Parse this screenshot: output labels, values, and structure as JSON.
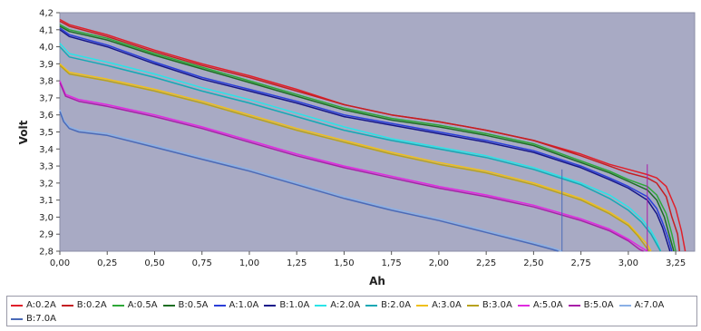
{
  "chart_data": {
    "type": "line",
    "title": "",
    "xlabel": "Ah",
    "ylabel": "Volt",
    "xlim": [
      0,
      3.35
    ],
    "ylim": [
      2.8,
      4.2
    ],
    "x_ticks": [
      "0,00",
      "0,25",
      "0,50",
      "0,75",
      "1,00",
      "1,25",
      "1,50",
      "1,75",
      "2,00",
      "2,25",
      "2,50",
      "2,75",
      "3,00",
      "3,25"
    ],
    "x_tick_values": [
      0,
      0.25,
      0.5,
      0.75,
      1.0,
      1.25,
      1.5,
      1.75,
      2.0,
      2.25,
      2.5,
      2.75,
      3.0,
      3.25
    ],
    "y_ticks": [
      "2,8",
      "2,9",
      "3,0",
      "3,1",
      "3,2",
      "3,3",
      "3,4",
      "3,5",
      "3,6",
      "3,7",
      "3,8",
      "3,9",
      "4,0",
      "4,1",
      "4,2"
    ],
    "y_tick_values": [
      2.8,
      2.9,
      3.0,
      3.1,
      3.2,
      3.3,
      3.4,
      3.5,
      3.6,
      3.7,
      3.8,
      3.9,
      4.0,
      4.1,
      4.2
    ],
    "grid": false,
    "legend_position": "bottom",
    "background_color": "#a8aac4",
    "series": [
      {
        "name": "A:0.2A",
        "color": "#e0202a",
        "points": [
          [
            0,
            4.16
          ],
          [
            0.05,
            4.13
          ],
          [
            0.25,
            4.07
          ],
          [
            0.5,
            3.98
          ],
          [
            0.75,
            3.9
          ],
          [
            1.0,
            3.83
          ],
          [
            1.25,
            3.75
          ],
          [
            1.5,
            3.66
          ],
          [
            1.75,
            3.6
          ],
          [
            2.0,
            3.56
          ],
          [
            2.25,
            3.51
          ],
          [
            2.5,
            3.45
          ],
          [
            2.75,
            3.37
          ],
          [
            2.9,
            3.31
          ],
          [
            3.0,
            3.28
          ],
          [
            3.1,
            3.25
          ],
          [
            3.15,
            3.23
          ],
          [
            3.2,
            3.18
          ],
          [
            3.25,
            3.05
          ],
          [
            3.28,
            2.92
          ],
          [
            3.3,
            2.8
          ]
        ]
      },
      {
        "name": "B:0.2A",
        "color": "#c41f22",
        "points": [
          [
            0,
            4.15
          ],
          [
            0.05,
            4.12
          ],
          [
            0.25,
            4.06
          ],
          [
            0.5,
            3.97
          ],
          [
            0.75,
            3.89
          ],
          [
            1.0,
            3.82
          ],
          [
            1.25,
            3.74
          ],
          [
            1.5,
            3.66
          ],
          [
            1.75,
            3.6
          ],
          [
            2.0,
            3.56
          ],
          [
            2.25,
            3.51
          ],
          [
            2.5,
            3.45
          ],
          [
            2.75,
            3.36
          ],
          [
            2.9,
            3.3
          ],
          [
            3.0,
            3.26
          ],
          [
            3.1,
            3.23
          ],
          [
            3.15,
            3.2
          ],
          [
            3.2,
            3.12
          ],
          [
            3.23,
            3.0
          ],
          [
            3.26,
            2.9
          ],
          [
            3.27,
            2.8
          ]
        ]
      },
      {
        "name": "A:0.5A",
        "color": "#2ea838",
        "points": [
          [
            0,
            4.13
          ],
          [
            0.05,
            4.1
          ],
          [
            0.25,
            4.05
          ],
          [
            0.5,
            3.96
          ],
          [
            0.75,
            3.88
          ],
          [
            1.0,
            3.8
          ],
          [
            1.25,
            3.72
          ],
          [
            1.5,
            3.64
          ],
          [
            1.75,
            3.58
          ],
          [
            2.0,
            3.54
          ],
          [
            2.25,
            3.49
          ],
          [
            2.5,
            3.43
          ],
          [
            2.75,
            3.33
          ],
          [
            2.9,
            3.27
          ],
          [
            3.0,
            3.22
          ],
          [
            3.1,
            3.18
          ],
          [
            3.15,
            3.13
          ],
          [
            3.2,
            3.02
          ],
          [
            3.23,
            2.9
          ],
          [
            3.25,
            2.8
          ]
        ]
      },
      {
        "name": "B:0.5A",
        "color": "#1d6e22",
        "points": [
          [
            0,
            4.12
          ],
          [
            0.05,
            4.09
          ],
          [
            0.25,
            4.04
          ],
          [
            0.5,
            3.95
          ],
          [
            0.75,
            3.87
          ],
          [
            1.0,
            3.79
          ],
          [
            1.25,
            3.71
          ],
          [
            1.5,
            3.63
          ],
          [
            1.75,
            3.57
          ],
          [
            2.0,
            3.53
          ],
          [
            2.25,
            3.48
          ],
          [
            2.5,
            3.42
          ],
          [
            2.75,
            3.32
          ],
          [
            2.9,
            3.26
          ],
          [
            3.0,
            3.21
          ],
          [
            3.1,
            3.16
          ],
          [
            3.15,
            3.1
          ],
          [
            3.19,
            3.0
          ],
          [
            3.22,
            2.88
          ],
          [
            3.24,
            2.8
          ]
        ]
      },
      {
        "name": "A:1.0A",
        "color": "#2a3ed8",
        "points": [
          [
            0,
            4.11
          ],
          [
            0.05,
            4.07
          ],
          [
            0.25,
            4.01
          ],
          [
            0.5,
            3.91
          ],
          [
            0.75,
            3.82
          ],
          [
            1.0,
            3.75
          ],
          [
            1.25,
            3.68
          ],
          [
            1.5,
            3.6
          ],
          [
            1.75,
            3.55
          ],
          [
            2.0,
            3.5
          ],
          [
            2.25,
            3.45
          ],
          [
            2.5,
            3.39
          ],
          [
            2.75,
            3.3
          ],
          [
            2.9,
            3.23
          ],
          [
            3.0,
            3.18
          ],
          [
            3.1,
            3.12
          ],
          [
            3.15,
            3.05
          ],
          [
            3.18,
            2.97
          ],
          [
            3.21,
            2.88
          ],
          [
            3.23,
            2.8
          ]
        ]
      },
      {
        "name": "B:1.0A",
        "color": "#16168a",
        "points": [
          [
            0,
            4.1
          ],
          [
            0.05,
            4.06
          ],
          [
            0.25,
            4.0
          ],
          [
            0.5,
            3.9
          ],
          [
            0.75,
            3.81
          ],
          [
            1.0,
            3.74
          ],
          [
            1.25,
            3.67
          ],
          [
            1.5,
            3.59
          ],
          [
            1.75,
            3.54
          ],
          [
            2.0,
            3.49
          ],
          [
            2.25,
            3.44
          ],
          [
            2.5,
            3.38
          ],
          [
            2.75,
            3.29
          ],
          [
            2.9,
            3.22
          ],
          [
            3.0,
            3.17
          ],
          [
            3.1,
            3.1
          ],
          [
            3.15,
            3.02
          ],
          [
            3.18,
            2.94
          ],
          [
            3.2,
            2.87
          ],
          [
            3.22,
            2.8
          ]
        ]
      },
      {
        "name": "A:2.0A",
        "color": "#2ae4e8",
        "points": [
          [
            0,
            4.02
          ],
          [
            0.05,
            3.96
          ],
          [
            0.25,
            3.91
          ],
          [
            0.5,
            3.84
          ],
          [
            0.75,
            3.76
          ],
          [
            1.0,
            3.69
          ],
          [
            1.25,
            3.61
          ],
          [
            1.5,
            3.53
          ],
          [
            1.75,
            3.46
          ],
          [
            2.0,
            3.41
          ],
          [
            2.25,
            3.36
          ],
          [
            2.5,
            3.29
          ],
          [
            2.75,
            3.2
          ],
          [
            2.9,
            3.13
          ],
          [
            3.0,
            3.06
          ],
          [
            3.07,
            2.99
          ],
          [
            3.12,
            2.92
          ],
          [
            3.15,
            2.86
          ],
          [
            3.17,
            2.8
          ]
        ]
      },
      {
        "name": "B:2.0A",
        "color": "#16a8b4",
        "points": [
          [
            0,
            4.0
          ],
          [
            0.05,
            3.94
          ],
          [
            0.25,
            3.89
          ],
          [
            0.5,
            3.82
          ],
          [
            0.75,
            3.74
          ],
          [
            1.0,
            3.67
          ],
          [
            1.25,
            3.59
          ],
          [
            1.5,
            3.51
          ],
          [
            1.75,
            3.45
          ],
          [
            2.0,
            3.4
          ],
          [
            2.25,
            3.35
          ],
          [
            2.5,
            3.28
          ],
          [
            2.75,
            3.19
          ],
          [
            2.9,
            3.11
          ],
          [
            3.0,
            3.04
          ],
          [
            3.07,
            2.97
          ],
          [
            3.12,
            2.9
          ],
          [
            3.15,
            2.84
          ],
          [
            3.17,
            2.8
          ]
        ]
      },
      {
        "name": "A:3.0A",
        "color": "#f0c01c",
        "points": [
          [
            0,
            3.9
          ],
          [
            0.05,
            3.85
          ],
          [
            0.25,
            3.81
          ],
          [
            0.5,
            3.75
          ],
          [
            0.75,
            3.68
          ],
          [
            1.0,
            3.6
          ],
          [
            1.25,
            3.52
          ],
          [
            1.5,
            3.45
          ],
          [
            1.75,
            3.38
          ],
          [
            2.0,
            3.32
          ],
          [
            2.25,
            3.27
          ],
          [
            2.5,
            3.2
          ],
          [
            2.75,
            3.11
          ],
          [
            2.9,
            3.03
          ],
          [
            3.0,
            2.96
          ],
          [
            3.05,
            2.9
          ],
          [
            3.1,
            2.84
          ],
          [
            3.12,
            2.8
          ]
        ]
      },
      {
        "name": "B:3.0A",
        "color": "#b8a21e",
        "points": [
          [
            0,
            3.89
          ],
          [
            0.05,
            3.84
          ],
          [
            0.25,
            3.8
          ],
          [
            0.5,
            3.74
          ],
          [
            0.75,
            3.67
          ],
          [
            1.0,
            3.59
          ],
          [
            1.25,
            3.51
          ],
          [
            1.5,
            3.44
          ],
          [
            1.75,
            3.37
          ],
          [
            2.0,
            3.31
          ],
          [
            2.25,
            3.26
          ],
          [
            2.5,
            3.19
          ],
          [
            2.75,
            3.1
          ],
          [
            2.9,
            3.02
          ],
          [
            3.0,
            2.95
          ],
          [
            3.05,
            2.89
          ],
          [
            3.09,
            2.83
          ],
          [
            3.11,
            2.8
          ]
        ]
      },
      {
        "name": "A:5.0A",
        "color": "#e02ae0",
        "points": [
          [
            0,
            3.8
          ],
          [
            0.03,
            3.72
          ],
          [
            0.1,
            3.69
          ],
          [
            0.25,
            3.66
          ],
          [
            0.5,
            3.6
          ],
          [
            0.75,
            3.53
          ],
          [
            1.0,
            3.45
          ],
          [
            1.25,
            3.37
          ],
          [
            1.5,
            3.3
          ],
          [
            1.75,
            3.24
          ],
          [
            2.0,
            3.18
          ],
          [
            2.25,
            3.13
          ],
          [
            2.5,
            3.07
          ],
          [
            2.75,
            2.99
          ],
          [
            2.9,
            2.93
          ],
          [
            3.0,
            2.87
          ],
          [
            3.07,
            2.82
          ],
          [
            3.1,
            2.8
          ]
        ]
      },
      {
        "name": "B:5.0A",
        "color": "#a81ea8",
        "points": [
          [
            0,
            3.79
          ],
          [
            0.03,
            3.71
          ],
          [
            0.1,
            3.68
          ],
          [
            0.25,
            3.65
          ],
          [
            0.5,
            3.59
          ],
          [
            0.75,
            3.52
          ],
          [
            1.0,
            3.44
          ],
          [
            1.25,
            3.36
          ],
          [
            1.5,
            3.29
          ],
          [
            1.75,
            3.23
          ],
          [
            2.0,
            3.17
          ],
          [
            2.25,
            3.12
          ],
          [
            2.5,
            3.06
          ],
          [
            2.75,
            2.98
          ],
          [
            2.9,
            2.92
          ],
          [
            3.0,
            2.86
          ],
          [
            3.06,
            2.81
          ],
          [
            3.08,
            2.8
          ]
        ]
      },
      {
        "name": "A:7.0A",
        "color": "#8ab0e6",
        "points": [
          [
            0,
            3.63
          ],
          [
            0.02,
            3.57
          ],
          [
            0.05,
            3.53
          ],
          [
            0.1,
            3.51
          ],
          [
            0.25,
            3.49
          ],
          [
            0.5,
            3.42
          ],
          [
            0.75,
            3.35
          ],
          [
            1.0,
            3.28
          ],
          [
            1.25,
            3.2
          ],
          [
            1.5,
            3.12
          ],
          [
            1.75,
            3.05
          ],
          [
            2.0,
            2.99
          ],
          [
            2.25,
            2.92
          ],
          [
            2.5,
            2.85
          ],
          [
            2.6,
            2.82
          ],
          [
            2.65,
            2.8
          ]
        ]
      },
      {
        "name": "B:7.0A",
        "color": "#4a6ab8",
        "points": [
          [
            0,
            3.62
          ],
          [
            0.02,
            3.56
          ],
          [
            0.05,
            3.52
          ],
          [
            0.1,
            3.5
          ],
          [
            0.25,
            3.48
          ],
          [
            0.5,
            3.41
          ],
          [
            0.75,
            3.34
          ],
          [
            1.0,
            3.27
          ],
          [
            1.25,
            3.19
          ],
          [
            1.5,
            3.11
          ],
          [
            1.75,
            3.04
          ],
          [
            2.0,
            2.98
          ],
          [
            2.25,
            2.91
          ],
          [
            2.5,
            2.84
          ],
          [
            2.6,
            2.81
          ],
          [
            2.63,
            2.8
          ]
        ]
      }
    ],
    "marker_lines": [
      {
        "x": 2.65,
        "y_top": 3.28,
        "color": "#4a6ab8"
      },
      {
        "x": 3.1,
        "y_top": 3.31,
        "color": "#a81ea8"
      }
    ]
  }
}
